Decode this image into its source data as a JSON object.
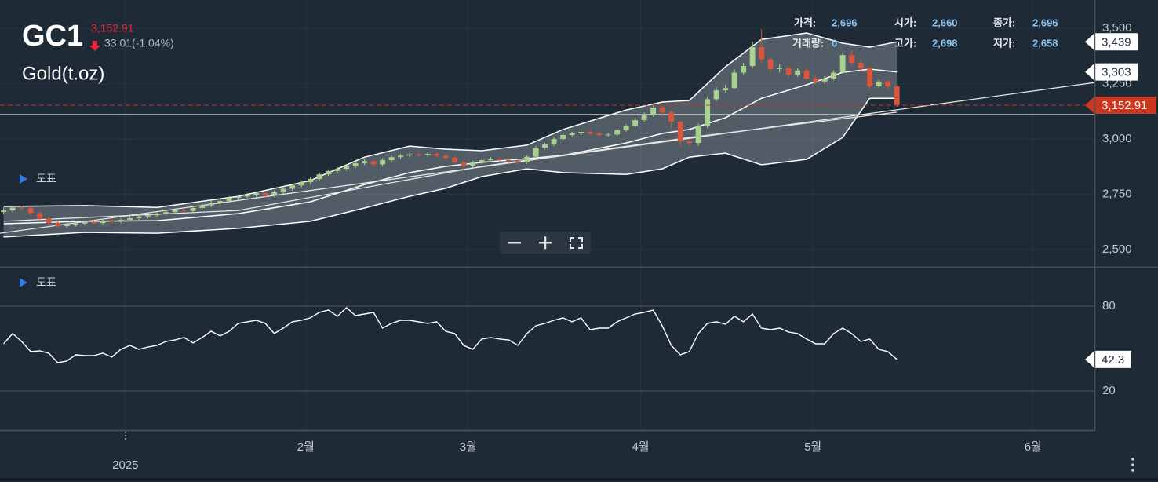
{
  "header": {
    "symbol": "GC1",
    "price": "3,152.91",
    "change": "33.01(-1.04%)",
    "name": "Gold(t.oz)"
  },
  "info": [
    {
      "label": "가격:",
      "value": "2,696"
    },
    {
      "label": "시가:",
      "value": "2,660"
    },
    {
      "label": "종가:",
      "value": "2,696"
    },
    {
      "label": "거래량:",
      "value": "0"
    },
    {
      "label": "고가:",
      "value": "2,698"
    },
    {
      "label": "저가:",
      "value": "2,658"
    }
  ],
  "panel_labels": [
    "도표",
    "도표"
  ],
  "chart_data": [
    {
      "type": "candlestick",
      "up_color": "#a9d18e",
      "down_color": "#d9553b",
      "x": [
        0,
        1,
        2,
        3,
        4,
        5,
        6,
        7,
        8,
        9,
        10,
        11,
        12,
        13,
        14,
        15,
        16,
        17,
        18,
        19,
        20,
        21,
        22,
        23,
        24,
        25,
        26,
        27,
        28,
        29,
        30,
        31,
        32,
        33,
        34,
        35,
        36,
        37,
        38,
        39,
        40,
        41,
        42,
        43,
        44,
        45,
        46,
        47,
        48,
        49,
        50,
        51,
        52,
        53,
        54,
        55,
        56,
        57,
        58,
        59,
        60,
        61,
        62,
        63,
        64,
        65,
        66,
        67,
        68,
        69,
        70,
        71,
        72,
        73,
        74,
        75,
        76,
        77,
        78,
        79,
        80,
        81,
        82,
        83,
        84,
        85,
        86,
        87,
        88,
        89,
        90,
        91,
        92,
        93,
        94,
        95,
        96,
        97,
        98,
        99
      ],
      "open": [
        2670,
        2677,
        2690,
        2688,
        2665,
        2640,
        2620,
        2606,
        2612,
        2618,
        2625,
        2620,
        2630,
        2628,
        2635,
        2642,
        2650,
        2655,
        2663,
        2670,
        2678,
        2675,
        2688,
        2700,
        2712,
        2720,
        2734,
        2740,
        2748,
        2755,
        2745,
        2759,
        2775,
        2790,
        2805,
        2819,
        2840,
        2855,
        2865,
        2876,
        2890,
        2900,
        2885,
        2904,
        2918,
        2925,
        2930,
        2928,
        2933,
        2925,
        2915,
        2895,
        2880,
        2895,
        2904,
        2910,
        2905,
        2900,
        2894,
        2920,
        2961,
        2975,
        3000,
        3018,
        3025,
        3032,
        3025,
        3018,
        3020,
        3040,
        3060,
        3085,
        3110,
        3142,
        3120,
        3078,
        2990,
        2982,
        3060,
        3180,
        3220,
        3230,
        3300,
        3330,
        3415,
        3360,
        3316,
        3320,
        3291,
        3310,
        3273,
        3260,
        3273,
        3300,
        3379,
        3344,
        3320,
        3238,
        3260,
        3238
      ],
      "high": [
        2690,
        2700,
        2700,
        2695,
        2672,
        2648,
        2628,
        2620,
        2626,
        2632,
        2632,
        2638,
        2638,
        2643,
        2650,
        2658,
        2663,
        2671,
        2678,
        2686,
        2686,
        2696,
        2708,
        2720,
        2728,
        2742,
        2748,
        2756,
        2763,
        2763,
        2767,
        2783,
        2798,
        2813,
        2827,
        2848,
        2863,
        2873,
        2884,
        2898,
        2908,
        2908,
        2912,
        2926,
        2933,
        2938,
        2938,
        2941,
        2941,
        2933,
        2923,
        2903,
        2903,
        2912,
        2918,
        2918,
        2913,
        2908,
        2928,
        2969,
        2983,
        3008,
        3026,
        3033,
        3045,
        3040,
        3033,
        3028,
        3048,
        3068,
        3095,
        3120,
        3160,
        3150,
        3130,
        3085,
        3000,
        3070,
        3190,
        3235,
        3245,
        3315,
        3345,
        3440,
        3495,
        3370,
        3340,
        3330,
        3320,
        3318,
        3285,
        3285,
        3310,
        3390,
        3400,
        3355,
        3325,
        3270,
        3265,
        3245
      ],
      "low": [
        2660,
        2668,
        2678,
        2655,
        2630,
        2610,
        2598,
        2598,
        2604,
        2610,
        2612,
        2612,
        2620,
        2620,
        2627,
        2634,
        2642,
        2647,
        2655,
        2662,
        2667,
        2667,
        2680,
        2692,
        2704,
        2712,
        2726,
        2732,
        2740,
        2737,
        2737,
        2751,
        2767,
        2782,
        2797,
        2811,
        2832,
        2847,
        2857,
        2868,
        2882,
        2877,
        2877,
        2896,
        2910,
        2917,
        2920,
        2920,
        2917,
        2907,
        2887,
        2860,
        2872,
        2887,
        2896,
        2897,
        2892,
        2886,
        2886,
        2912,
        2953,
        2967,
        2992,
        3010,
        3017,
        3017,
        3010,
        3010,
        3012,
        3032,
        3052,
        3077,
        3100,
        3105,
        3050,
        2970,
        2965,
        2970,
        3050,
        3170,
        3210,
        3225,
        3290,
        3320,
        3340,
        3300,
        3300,
        3280,
        3280,
        3265,
        3245,
        3250,
        3265,
        3295,
        3335,
        3305,
        3225,
        3230,
        3225,
        3145
      ],
      "close": [
        2677,
        2690,
        2688,
        2665,
        2640,
        2620,
        2606,
        2612,
        2618,
        2625,
        2620,
        2630,
        2628,
        2635,
        2642,
        2650,
        2655,
        2663,
        2670,
        2678,
        2675,
        2688,
        2700,
        2712,
        2720,
        2734,
        2740,
        2748,
        2755,
        2745,
        2759,
        2775,
        2790,
        2805,
        2819,
        2840,
        2855,
        2865,
        2876,
        2890,
        2900,
        2885,
        2904,
        2918,
        2925,
        2930,
        2928,
        2933,
        2925,
        2915,
        2895,
        2880,
        2895,
        2904,
        2910,
        2905,
        2900,
        2894,
        2920,
        2961,
        2975,
        3000,
        3018,
        3025,
        3032,
        3025,
        3018,
        3020,
        3040,
        3060,
        3085,
        3110,
        3142,
        3120,
        3078,
        2990,
        2982,
        3060,
        3180,
        3220,
        3230,
        3300,
        3330,
        3415,
        3360,
        3316,
        3320,
        3291,
        3310,
        3273,
        3260,
        3273,
        3300,
        3379,
        3344,
        3320,
        3238,
        3260,
        3238,
        3152.91
      ],
      "bands": {
        "x": [
          0,
          9,
          17,
          26,
          34,
          40,
          45,
          49,
          53,
          58,
          62,
          69,
          73,
          76,
          80,
          84,
          89,
          93,
          96,
          99
        ],
        "upper": [
          2695,
          2699,
          2691,
          2741,
          2812,
          2918,
          2968,
          2954,
          2947,
          2972,
          3043,
          3131,
          3167,
          3174,
          3326,
          3450,
          3479,
          3433,
          3415,
          3439
        ],
        "middle": [
          2617,
          2628,
          2631,
          2663,
          2716,
          2794,
          2848,
          2876,
          2894,
          2911,
          2926,
          2982,
          3025,
          3043,
          3096,
          3184,
          3245,
          3301,
          3316,
          3303
        ],
        "lower": [
          2557,
          2578,
          2574,
          2596,
          2628,
          2688,
          2741,
          2777,
          2830,
          2865,
          2848,
          2840,
          2865,
          2918,
          2936,
          2883,
          2908,
          3007,
          3184,
          3184
        ],
        "color": "#ffffff",
        "fill": "rgba(205,210,215,0.3)"
      },
      "lines": [
        {
          "x": [
            0,
            26,
            53,
            76,
            99
          ],
          "values": [
            2628,
            2677,
            2876,
            3007,
            3121
          ],
          "color": "#e6e6e6"
        },
        {
          "x": [
            -0.4,
            120.9
          ],
          "values": [
            2574,
            3255
          ],
          "color": "#e6e6e6"
        },
        {
          "x": [
            -0.4,
            120.9
          ],
          "values": [
            3110,
            3110
          ],
          "color": "#e6e6e6"
        }
      ],
      "price_tags": [
        {
          "value": 3439,
          "label": "3,439"
        },
        {
          "value": 3303,
          "label": "3,303"
        }
      ],
      "last_price": {
        "value": 3152.91,
        "label": "3,152.91",
        "color": "#c8371e"
      },
      "xlim": [
        -0.4,
        120.9
      ],
      "xticks": [
        {
          "value": 33.5,
          "label": "2월"
        },
        {
          "value": 51.5,
          "label": "3월"
        },
        {
          "value": 70.6,
          "label": "4월"
        },
        {
          "value": 89.7,
          "label": "5월"
        },
        {
          "value": 114.1,
          "label": "6월"
        }
      ],
      "year_ticks": [
        {
          "value": 13.5,
          "label": "2025"
        }
      ],
      "ylim": [
        2422,
        3628
      ],
      "yticks": [
        {
          "value": 2500,
          "label": "2,500"
        },
        {
          "value": 2750,
          "label": "2,750"
        },
        {
          "value": 3000,
          "label": "3,000"
        },
        {
          "value": 3250,
          "label": "3,250"
        },
        {
          "value": 3500,
          "label": "3,500"
        }
      ],
      "grid": true
    },
    {
      "type": "line",
      "color": "#ffffff",
      "x": [
        0,
        1,
        2,
        3,
        4,
        5,
        6,
        7,
        8,
        9,
        10,
        11,
        12,
        13,
        14,
        15,
        16,
        17,
        18,
        19,
        20,
        21,
        22,
        23,
        24,
        25,
        26,
        27,
        28,
        29,
        30,
        31,
        32,
        33,
        34,
        35,
        36,
        37,
        38,
        39,
        40,
        41,
        42,
        43,
        44,
        45,
        46,
        47,
        48,
        49,
        50,
        51,
        52,
        53,
        54,
        55,
        56,
        57,
        58,
        59,
        60,
        61,
        62,
        63,
        64,
        65,
        66,
        67,
        68,
        69,
        70,
        71,
        72,
        73,
        74,
        75,
        76,
        77,
        78,
        79,
        80,
        81,
        82,
        83,
        84,
        85,
        86,
        87,
        88,
        89,
        90,
        91,
        92,
        93,
        94,
        95,
        96,
        97,
        98,
        99
      ],
      "values": [
        53.3,
        60.6,
        55,
        47.8,
        48.3,
        46.7,
        40,
        41.1,
        45.6,
        45,
        45,
        46.7,
        43.9,
        49.4,
        52.2,
        49.4,
        51.1,
        52.2,
        55,
        56.1,
        57.8,
        53.9,
        57.8,
        62.2,
        58.9,
        62.2,
        67.8,
        68.9,
        70,
        67.8,
        60.6,
        64.4,
        68.9,
        70,
        71.7,
        75.6,
        77.2,
        72.8,
        78.9,
        73.3,
        74.4,
        75.6,
        64.4,
        67.8,
        70,
        70,
        68.9,
        67.8,
        68.9,
        62.2,
        60.6,
        52.2,
        49.4,
        56.7,
        57.8,
        56.7,
        56.1,
        52.2,
        60.6,
        66.1,
        67.8,
        70,
        71.7,
        68.9,
        71.7,
        63.3,
        64.4,
        64.4,
        68.9,
        71.7,
        74.4,
        75.6,
        77.2,
        66.1,
        52.2,
        45.6,
        47.8,
        60.6,
        67.8,
        68.9,
        67.2,
        72.8,
        68.9,
        74.4,
        64.4,
        63.3,
        64.4,
        61.7,
        60.6,
        56.7,
        53.3,
        53.3,
        60.6,
        64.4,
        60.6,
        55,
        56.7,
        49.4,
        47.8,
        42.3
      ],
      "xlim": [
        -0.4,
        120.9
      ],
      "ylim": [
        -7.8,
        107.2
      ],
      "yticks": [
        20,
        80
      ],
      "grid": true
    }
  ]
}
